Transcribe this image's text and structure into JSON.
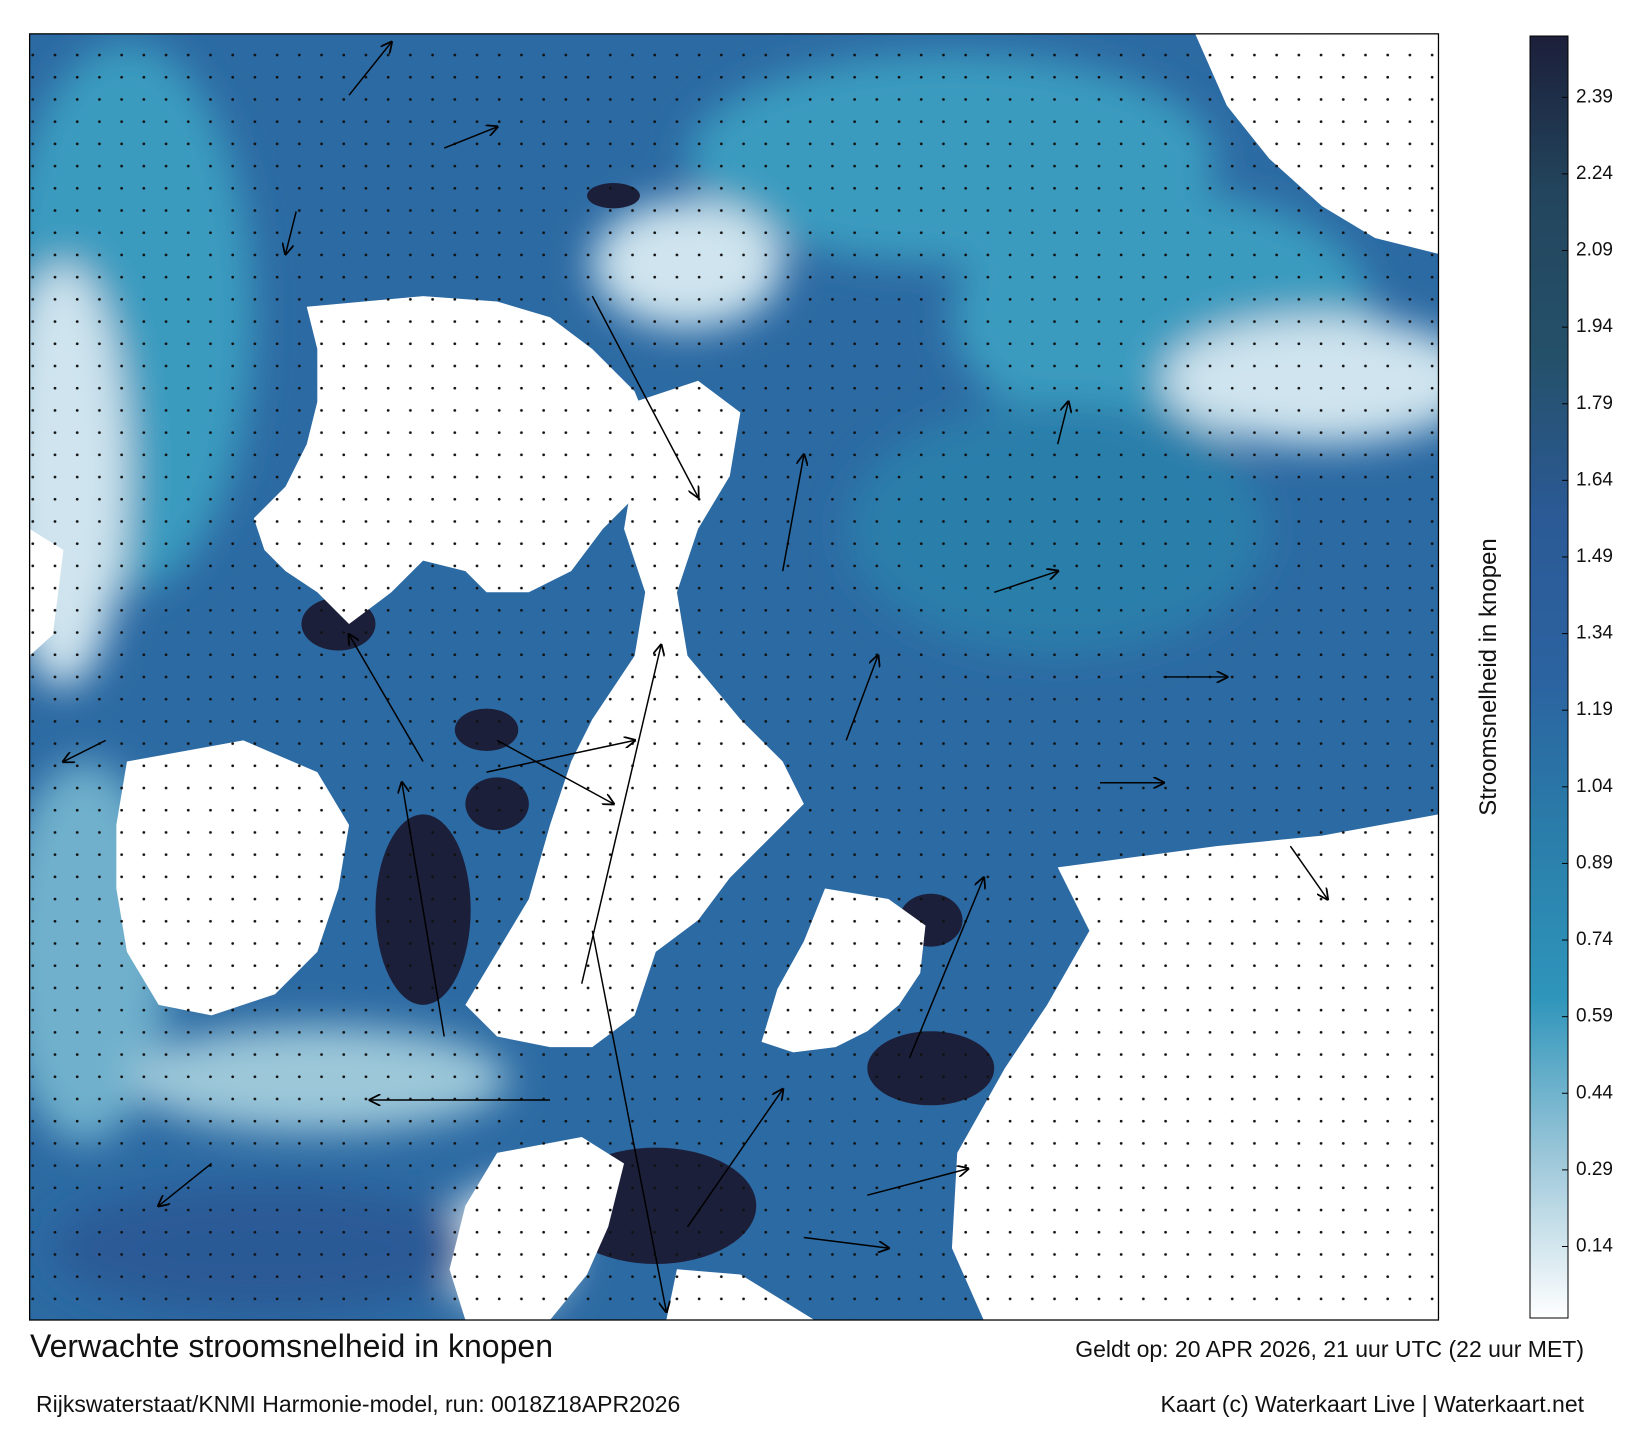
{
  "title": "Verwachte stroomsnelheid in knopen",
  "subtitle": "Rijkswaterstaat/KNMI Harmonie-model, run: 0018Z18APR2026",
  "valid_time": "Geldt op: 20 APR 2026, 21 uur UTC (22 uur MET)",
  "credit": "Kaart (c) Waterkaart Live | Waterkaart.net",
  "colorbar": {
    "label": "Stroomsnelheid in knopen",
    "lim": [
      0,
      2.51
    ],
    "ticks": [
      0.14,
      0.29,
      0.44,
      0.59,
      0.74,
      0.89,
      1.04,
      1.19,
      1.34,
      1.49,
      1.64,
      1.79,
      1.94,
      2.09,
      2.24,
      2.39
    ],
    "colors": [
      "#ffffff",
      "#9cc7d9",
      "#2f95bb",
      "#2a7eaa",
      "#2b63a0",
      "#2b5a96",
      "#25506a",
      "#23465e",
      "#1c1f3a"
    ]
  }
}
